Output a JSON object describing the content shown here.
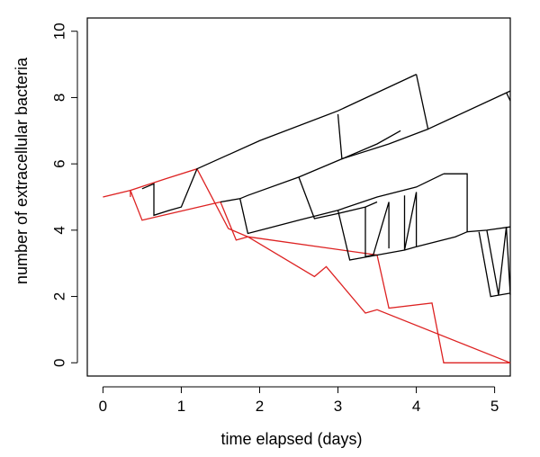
{
  "chart_data": {
    "type": "line",
    "title": "",
    "xlabel": "time elapsed (days)",
    "ylabel": "number of extracellular bacteria",
    "xlim": [
      -0.2,
      5.2
    ],
    "ylim": [
      -0.4,
      10.4
    ],
    "xticks": [
      0,
      1,
      2,
      3,
      4,
      5
    ],
    "yticks": [
      0,
      2,
      4,
      6,
      8,
      10
    ],
    "grid": false,
    "legend": "none",
    "colors": {
      "black": "#000000",
      "red": "#dd2222"
    },
    "series": [
      {
        "color": "red",
        "x": [
          0,
          0.35,
          0.35,
          0.5,
          0.5,
          1.5,
          1.5,
          1.7,
          1.7,
          1.85,
          1.85,
          2.7,
          2.7,
          2.85,
          2.85,
          3.35,
          3.35,
          3.5,
          3.5,
          5.2
        ],
        "y": [
          5.0,
          5.2,
          5.2,
          4.3,
          4.3,
          4.85,
          4.85,
          3.7,
          3.7,
          3.8,
          3.8,
          2.6,
          2.6,
          2.9,
          2.9,
          1.5,
          1.5,
          1.6,
          1.6,
          0.0
        ]
      },
      {
        "color": "red",
        "x": [
          0.35,
          0.35,
          0.8,
          1.2,
          1.2,
          1.6,
          1.6,
          1.85,
          1.85,
          3.5,
          3.5,
          3.65,
          3.65,
          4.2,
          4.2,
          4.35,
          4.35,
          5.2
        ],
        "y": [
          5.0,
          5.2,
          5.55,
          5.85,
          5.85,
          4.05,
          4.05,
          3.8,
          3.8,
          3.25,
          3.25,
          1.65,
          1.65,
          1.8,
          1.8,
          0.0,
          0.0,
          0.0
        ]
      },
      {
        "color": "black",
        "x": [
          0.5,
          0.65,
          0.65,
          0.85,
          0.85,
          1.0,
          1.2,
          2.0,
          3.0,
          4.0
        ],
        "y": [
          5.25,
          5.4,
          4.45,
          4.6,
          4.6,
          4.7,
          5.85,
          6.7,
          7.6,
          8.7
        ]
      },
      {
        "color": "black",
        "x": [
          4.0,
          4.15,
          4.15,
          5.2
        ],
        "y": [
          8.7,
          7.05,
          7.05,
          8.2
        ]
      },
      {
        "color": "black",
        "x": [
          1.5,
          1.75,
          1.85,
          2.5,
          3.0,
          3.5,
          3.8
        ],
        "y": [
          4.85,
          4.95,
          5.05,
          5.6,
          6.1,
          6.6,
          7.0
        ]
      },
      {
        "color": "black",
        "x": [
          3.0,
          3.05,
          3.05,
          3.65,
          3.65,
          4.15
        ],
        "y": [
          7.5,
          6.15,
          6.15,
          6.6,
          6.6,
          7.05
        ]
      },
      {
        "color": "black",
        "x": [
          1.75,
          1.85,
          1.85,
          2.5,
          2.5,
          3.0,
          3.5,
          4.0,
          4.35
        ],
        "y": [
          4.95,
          3.9,
          3.9,
          4.3,
          4.3,
          4.6,
          5.0,
          5.3,
          5.7
        ]
      },
      {
        "color": "black",
        "x": [
          2.5,
          2.7,
          3.0,
          3.35,
          3.5
        ],
        "y": [
          5.6,
          4.35,
          4.5,
          4.7,
          4.85
        ]
      },
      {
        "color": "black",
        "x": [
          3.0,
          3.15,
          3.15,
          3.5,
          3.5,
          3.85,
          4.0,
          4.5,
          4.65
        ],
        "y": [
          4.6,
          3.1,
          3.1,
          3.25,
          3.25,
          3.4,
          3.5,
          3.8,
          3.95
        ]
      },
      {
        "color": "black",
        "x": [
          3.35,
          3.35,
          3.45,
          3.65,
          3.65
        ],
        "y": [
          4.7,
          3.2,
          3.25,
          4.85,
          3.45
        ]
      },
      {
        "color": "black",
        "x": [
          3.85,
          3.85,
          4.0,
          4.0
        ],
        "y": [
          5.05,
          3.4,
          5.15,
          3.5
        ]
      },
      {
        "color": "black",
        "x": [
          4.35,
          4.65,
          4.65,
          4.9,
          5.2
        ],
        "y": [
          5.7,
          5.7,
          3.95,
          4.0,
          4.1
        ]
      },
      {
        "color": "black",
        "x": [
          4.8,
          4.95,
          4.95,
          5.2
        ],
        "y": [
          3.95,
          2.0,
          2.0,
          2.1
        ]
      },
      {
        "color": "black",
        "x": [
          4.9,
          5.05,
          5.05,
          5.15,
          5.15,
          5.2
        ],
        "y": [
          4.0,
          2.05,
          2.05,
          4.1,
          4.1,
          2.05
        ]
      },
      {
        "color": "black",
        "x": [
          5.15,
          5.2
        ],
        "y": [
          8.15,
          7.9
        ]
      }
    ]
  }
}
